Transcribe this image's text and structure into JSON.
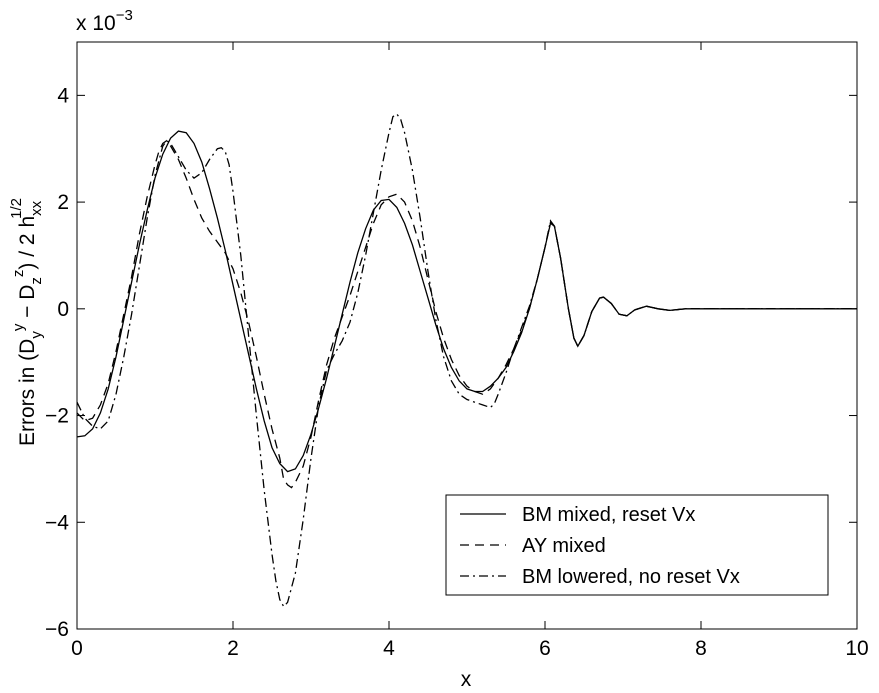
{
  "chart_data": {
    "type": "line",
    "title": "",
    "xlabel": "x",
    "ylabel": {
      "base": "Errors in (D",
      "sub1": "y",
      "sup1": "y",
      "mid": " − D",
      "sub2": "z",
      "sup2": "z",
      "end": ") / 2 h",
      "sub3": "xx",
      "sup3": "1/2"
    },
    "scale_label": {
      "base": "x 10",
      "exp": "−3"
    },
    "xlim": [
      0,
      10
    ],
    "ylim": [
      -6,
      5
    ],
    "xticks": [
      0,
      2,
      4,
      6,
      8,
      10
    ],
    "yticks": [
      -6,
      -4,
      -2,
      0,
      2,
      4
    ],
    "xtick_labels": [
      "0",
      "2",
      "4",
      "6",
      "8",
      "10"
    ],
    "ytick_labels": [
      "−6",
      "−4",
      "−2",
      "0",
      "2",
      "4"
    ],
    "grid": false,
    "legend_position": "bottom-right",
    "series": [
      {
        "name": "BM mixed, reset Vx",
        "style": "solid",
        "points": [
          [
            0,
            -2.4
          ],
          [
            0.1,
            -2.38
          ],
          [
            0.2,
            -2.25
          ],
          [
            0.3,
            -1.95
          ],
          [
            0.4,
            -1.5
          ],
          [
            0.5,
            -0.9
          ],
          [
            0.6,
            -0.2
          ],
          [
            0.7,
            0.5
          ],
          [
            0.8,
            1.2
          ],
          [
            0.9,
            1.85
          ],
          [
            1.0,
            2.45
          ],
          [
            1.1,
            2.9
          ],
          [
            1.2,
            3.2
          ],
          [
            1.3,
            3.33
          ],
          [
            1.4,
            3.3
          ],
          [
            1.5,
            3.1
          ],
          [
            1.6,
            2.75
          ],
          [
            1.7,
            2.25
          ],
          [
            1.8,
            1.7
          ],
          [
            1.9,
            1.1
          ],
          [
            2.0,
            0.45
          ],
          [
            2.1,
            -0.2
          ],
          [
            2.2,
            -0.85
          ],
          [
            2.3,
            -1.5
          ],
          [
            2.4,
            -2.1
          ],
          [
            2.5,
            -2.6
          ],
          [
            2.6,
            -2.9
          ],
          [
            2.7,
            -3.05
          ],
          [
            2.8,
            -3.0
          ],
          [
            2.9,
            -2.75
          ],
          [
            3.0,
            -2.35
          ],
          [
            3.1,
            -1.85
          ],
          [
            3.2,
            -1.3
          ],
          [
            3.3,
            -0.7
          ],
          [
            3.4,
            -0.1
          ],
          [
            3.5,
            0.5
          ],
          [
            3.6,
            1.05
          ],
          [
            3.7,
            1.5
          ],
          [
            3.8,
            1.85
          ],
          [
            3.9,
            2.03
          ],
          [
            4.0,
            2.05
          ],
          [
            4.1,
            1.9
          ],
          [
            4.2,
            1.6
          ],
          [
            4.3,
            1.2
          ],
          [
            4.4,
            0.7
          ],
          [
            4.5,
            0.2
          ],
          [
            4.6,
            -0.3
          ],
          [
            4.7,
            -0.75
          ],
          [
            4.8,
            -1.1
          ],
          [
            4.9,
            -1.35
          ],
          [
            5.0,
            -1.5
          ],
          [
            5.1,
            -1.55
          ],
          [
            5.2,
            -1.55
          ],
          [
            5.3,
            -1.45
          ],
          [
            5.4,
            -1.3
          ],
          [
            5.5,
            -1.1
          ],
          [
            5.6,
            -0.8
          ],
          [
            5.7,
            -0.45
          ],
          [
            5.8,
            0.0
          ],
          [
            5.9,
            0.55
          ],
          [
            6.0,
            1.15
          ],
          [
            6.07,
            1.6
          ],
          [
            6.12,
            1.55
          ],
          [
            6.2,
            0.95
          ],
          [
            6.3,
            0.0
          ],
          [
            6.37,
            -0.55
          ],
          [
            6.42,
            -0.7
          ],
          [
            6.5,
            -0.5
          ],
          [
            6.6,
            -0.05
          ],
          [
            6.7,
            0.2
          ],
          [
            6.75,
            0.22
          ],
          [
            6.85,
            0.1
          ],
          [
            6.95,
            -0.1
          ],
          [
            7.05,
            -0.13
          ],
          [
            7.15,
            -0.02
          ],
          [
            7.3,
            0.05
          ],
          [
            7.45,
            0.0
          ],
          [
            7.6,
            -0.03
          ],
          [
            7.8,
            0.0
          ],
          [
            8.0,
            0.0
          ],
          [
            9.0,
            0.0
          ],
          [
            10.0,
            0.0
          ]
        ]
      },
      {
        "name": "AY mixed",
        "style": "dashed",
        "points": [
          [
            0,
            -1.95
          ],
          [
            0.1,
            -2.1
          ],
          [
            0.2,
            -2.05
          ],
          [
            0.3,
            -1.8
          ],
          [
            0.4,
            -1.4
          ],
          [
            0.5,
            -0.8
          ],
          [
            0.6,
            -0.1
          ],
          [
            0.7,
            0.6
          ],
          [
            0.8,
            1.4
          ],
          [
            0.9,
            2.1
          ],
          [
            1.0,
            2.7
          ],
          [
            1.05,
            2.95
          ],
          [
            1.1,
            3.1
          ],
          [
            1.15,
            3.15
          ],
          [
            1.2,
            3.05
          ],
          [
            1.3,
            2.8
          ],
          [
            1.4,
            2.45
          ],
          [
            1.5,
            2.05
          ],
          [
            1.6,
            1.7
          ],
          [
            1.7,
            1.45
          ],
          [
            1.8,
            1.25
          ],
          [
            1.9,
            1.05
          ],
          [
            2.0,
            0.75
          ],
          [
            2.1,
            0.3
          ],
          [
            2.2,
            -0.25
          ],
          [
            2.3,
            -0.9
          ],
          [
            2.4,
            -1.6
          ],
          [
            2.5,
            -2.25
          ],
          [
            2.6,
            -2.8
          ],
          [
            2.65,
            -3.2
          ],
          [
            2.7,
            -3.3
          ],
          [
            2.75,
            -3.35
          ],
          [
            2.8,
            -3.25
          ],
          [
            2.9,
            -2.95
          ],
          [
            3.0,
            -2.4
          ],
          [
            3.1,
            -1.7
          ],
          [
            3.2,
            -1.05
          ],
          [
            3.3,
            -0.55
          ],
          [
            3.4,
            -0.15
          ],
          [
            3.5,
            0.25
          ],
          [
            3.6,
            0.7
          ],
          [
            3.7,
            1.15
          ],
          [
            3.8,
            1.6
          ],
          [
            3.9,
            1.95
          ],
          [
            4.0,
            2.1
          ],
          [
            4.1,
            2.15
          ],
          [
            4.2,
            2.0
          ],
          [
            4.3,
            1.65
          ],
          [
            4.4,
            1.15
          ],
          [
            4.5,
            0.55
          ],
          [
            4.6,
            -0.05
          ],
          [
            4.7,
            -0.55
          ],
          [
            4.8,
            -0.95
          ],
          [
            4.9,
            -1.25
          ],
          [
            5.0,
            -1.45
          ],
          [
            5.1,
            -1.55
          ],
          [
            5.2,
            -1.6
          ],
          [
            5.3,
            -1.5
          ],
          [
            5.4,
            -1.3
          ],
          [
            5.5,
            -1.05
          ],
          [
            5.6,
            -0.75
          ],
          [
            5.7,
            -0.4
          ],
          [
            5.8,
            0.0
          ],
          [
            5.9,
            0.55
          ],
          [
            6.0,
            1.15
          ],
          [
            6.07,
            1.62
          ],
          [
            6.12,
            1.55
          ],
          [
            6.2,
            0.95
          ],
          [
            6.3,
            0.0
          ],
          [
            6.37,
            -0.55
          ],
          [
            6.42,
            -0.7
          ],
          [
            6.5,
            -0.5
          ],
          [
            6.6,
            -0.05
          ],
          [
            6.7,
            0.2
          ],
          [
            6.75,
            0.22
          ],
          [
            6.85,
            0.1
          ],
          [
            6.95,
            -0.1
          ],
          [
            7.05,
            -0.13
          ],
          [
            7.15,
            -0.02
          ],
          [
            7.3,
            0.05
          ],
          [
            7.45,
            0.0
          ],
          [
            7.6,
            -0.03
          ],
          [
            7.8,
            0.0
          ],
          [
            8.0,
            0.0
          ],
          [
            9.0,
            0.0
          ],
          [
            10.0,
            0.0
          ]
        ]
      },
      {
        "name": "BM lowered, no reset Vx",
        "style": "dashdot",
        "points": [
          [
            0,
            -1.75
          ],
          [
            0.1,
            -2.05
          ],
          [
            0.2,
            -2.2
          ],
          [
            0.3,
            -2.25
          ],
          [
            0.4,
            -2.1
          ],
          [
            0.5,
            -1.6
          ],
          [
            0.6,
            -0.9
          ],
          [
            0.7,
            -0.1
          ],
          [
            0.8,
            0.8
          ],
          [
            0.9,
            1.7
          ],
          [
            1.0,
            2.5
          ],
          [
            1.1,
            3.05
          ],
          [
            1.15,
            3.15
          ],
          [
            1.2,
            3.1
          ],
          [
            1.3,
            2.85
          ],
          [
            1.4,
            2.6
          ],
          [
            1.5,
            2.45
          ],
          [
            1.6,
            2.55
          ],
          [
            1.7,
            2.8
          ],
          [
            1.8,
            3.0
          ],
          [
            1.85,
            3.02
          ],
          [
            1.9,
            2.95
          ],
          [
            1.95,
            2.7
          ],
          [
            2.0,
            2.2
          ],
          [
            2.1,
            1.0
          ],
          [
            2.2,
            -0.5
          ],
          [
            2.3,
            -2.0
          ],
          [
            2.4,
            -3.4
          ],
          [
            2.5,
            -4.6
          ],
          [
            2.55,
            -5.1
          ],
          [
            2.6,
            -5.45
          ],
          [
            2.65,
            -5.58
          ],
          [
            2.7,
            -5.5
          ],
          [
            2.8,
            -4.95
          ],
          [
            2.9,
            -3.95
          ],
          [
            3.0,
            -2.8
          ],
          [
            3.1,
            -1.8
          ],
          [
            3.2,
            -1.15
          ],
          [
            3.3,
            -0.85
          ],
          [
            3.4,
            -0.6
          ],
          [
            3.5,
            -0.25
          ],
          [
            3.6,
            0.3
          ],
          [
            3.7,
            1.0
          ],
          [
            3.8,
            1.8
          ],
          [
            3.9,
            2.6
          ],
          [
            4.0,
            3.3
          ],
          [
            4.05,
            3.6
          ],
          [
            4.1,
            3.65
          ],
          [
            4.15,
            3.55
          ],
          [
            4.2,
            3.3
          ],
          [
            4.3,
            2.6
          ],
          [
            4.4,
            1.7
          ],
          [
            4.5,
            0.7
          ],
          [
            4.6,
            -0.2
          ],
          [
            4.7,
            -0.9
          ],
          [
            4.8,
            -1.35
          ],
          [
            4.9,
            -1.6
          ],
          [
            5.0,
            -1.7
          ],
          [
            5.1,
            -1.75
          ],
          [
            5.2,
            -1.8
          ],
          [
            5.3,
            -1.85
          ],
          [
            5.35,
            -1.78
          ],
          [
            5.4,
            -1.6
          ],
          [
            5.5,
            -1.2
          ],
          [
            5.6,
            -0.75
          ],
          [
            5.7,
            -0.35
          ],
          [
            5.8,
            0.05
          ],
          [
            5.9,
            0.55
          ],
          [
            6.0,
            1.15
          ],
          [
            6.07,
            1.65
          ],
          [
            6.12,
            1.55
          ],
          [
            6.2,
            0.95
          ],
          [
            6.3,
            0.0
          ],
          [
            6.37,
            -0.55
          ],
          [
            6.42,
            -0.7
          ],
          [
            6.5,
            -0.5
          ],
          [
            6.6,
            -0.05
          ],
          [
            6.7,
            0.2
          ],
          [
            6.75,
            0.22
          ],
          [
            6.85,
            0.1
          ],
          [
            6.95,
            -0.1
          ],
          [
            7.05,
            -0.13
          ],
          [
            7.15,
            -0.02
          ],
          [
            7.3,
            0.05
          ],
          [
            7.45,
            0.0
          ],
          [
            7.6,
            -0.03
          ],
          [
            7.8,
            0.0
          ],
          [
            8.0,
            0.0
          ],
          [
            9.0,
            0.0
          ],
          [
            10.0,
            0.0
          ]
        ]
      }
    ]
  }
}
